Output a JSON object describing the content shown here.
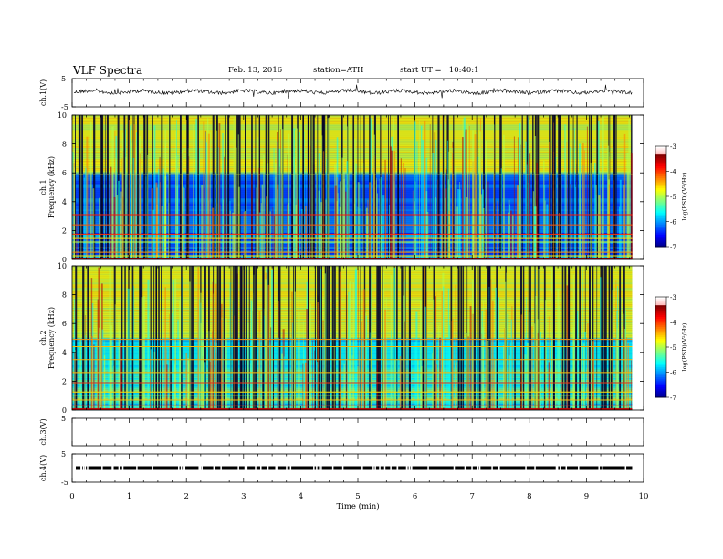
{
  "header": {
    "title": "VLF Spectra",
    "date": "Feb. 13, 2016",
    "station": "station=ATH",
    "start_ut": "start UT =   10:40:1"
  },
  "chart_data": [
    {
      "type": "line",
      "panel": "ch1-waveform",
      "ylabel": "ch.1(V)",
      "yticks": [
        "5",
        "-5"
      ],
      "ylim": [
        -5,
        5
      ],
      "xlim": [
        0,
        10
      ],
      "data_end_min": 9.8,
      "baseline": 0
    },
    {
      "type": "heatmap",
      "panel": "ch1-spectrogram",
      "ylabel_line1": "ch.1",
      "ylabel_line2": "Frequency  (kHz)",
      "yticks": [
        "0",
        "2",
        "4",
        "6",
        "8",
        "10"
      ],
      "ylim": [
        0,
        10
      ],
      "xlim": [
        0,
        10
      ],
      "data_end_min": 9.8,
      "colorbar": {
        "label": "log(PSD)(V²/Hz)",
        "ticks": [
          "-3",
          "-4",
          "-5",
          "-6",
          "-7"
        ],
        "range": [
          -7,
          -3
        ]
      }
    },
    {
      "type": "heatmap",
      "panel": "ch2-spectrogram",
      "ylabel_line1": "ch.2",
      "ylabel_line2": "Frequency  (kHz)",
      "yticks": [
        "0",
        "2",
        "4",
        "6",
        "8",
        "10"
      ],
      "ylim": [
        0,
        10
      ],
      "xlim": [
        0,
        10
      ],
      "data_end_min": 9.8,
      "colorbar": {
        "label": "log(PSD)(V²/Hz)",
        "ticks": [
          "-3",
          "-4",
          "-5",
          "-6",
          "-7"
        ],
        "range": [
          -7,
          -3
        ]
      }
    },
    {
      "type": "line",
      "panel": "ch3-waveform",
      "ylabel": "ch.3(V)",
      "yticks": [
        "5"
      ],
      "ylim": [
        -5,
        5
      ],
      "xlim": [
        0,
        10
      ]
    },
    {
      "type": "line",
      "panel": "ch4-waveform",
      "ylabel": "ch.4(V)",
      "yticks": [
        "5",
        "-5"
      ],
      "ylim": [
        -5,
        5
      ],
      "xlim": [
        0,
        10
      ],
      "data_end_min": 9.8,
      "baseline": 0
    }
  ],
  "xaxis": {
    "label": "Time  (min)",
    "ticks": [
      "0",
      "1",
      "2",
      "3",
      "4",
      "5",
      "6",
      "7",
      "8",
      "9",
      "10"
    ]
  }
}
